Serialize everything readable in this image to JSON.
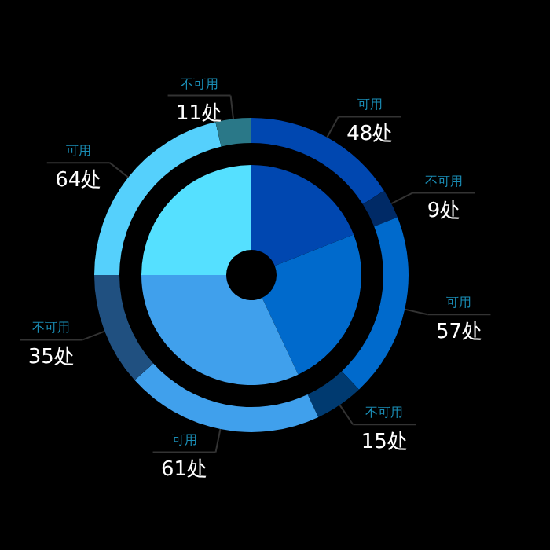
{
  "chart_data": [
    {
      "type": "donut",
      "categories": [
        "可用",
        "不可用",
        "可用",
        "不可用",
        "可用",
        "不可用",
        "可用",
        "不可用"
      ],
      "values": [
        48,
        9,
        57,
        15,
        61,
        35,
        64,
        11
      ],
      "value_labels": [
        "48处",
        "9处",
        "57处",
        "15处",
        "61处",
        "35处",
        "64处",
        "11处"
      ],
      "colors": [
        "#0047b0",
        "#002a66",
        "#006acc",
        "#003a70",
        "#40a0ec",
        "#205080",
        "#55d0fc",
        "#2a7888"
      ]
    },
    {
      "type": "donut",
      "categories": [
        null,
        null,
        null,
        null
      ],
      "values": [
        19,
        24,
        32,
        25
      ],
      "colors": [
        "#0047b0",
        "#006acc",
        "#40a0ec",
        "#55e0ff"
      ]
    }
  ]
}
